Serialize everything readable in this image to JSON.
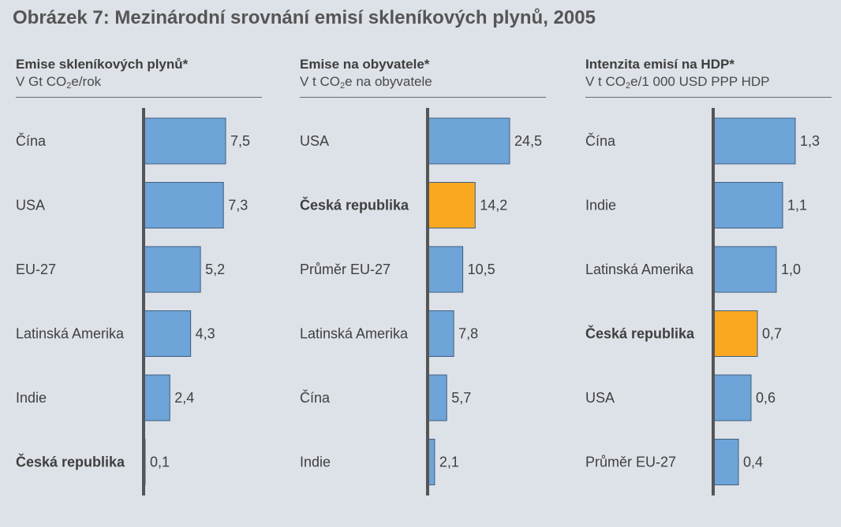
{
  "figure_title": "Obrázek 7: Mezinárodní srovnání emisí skleníkových plynů, 2005",
  "colors": {
    "bar": "#6ea4d8",
    "bar_stroke": "#3e5f80",
    "highlight": "#f9a81f",
    "axis": "#555555"
  },
  "chart_data": [
    {
      "type": "bar",
      "orientation": "horizontal",
      "title": "Emise skleníkových plynů*",
      "subtitle": {
        "before": "V Gt CO",
        "sub": "2",
        "after": "e/rok"
      },
      "categories": [
        "Čína",
        "USA",
        "EU-27",
        "Latinská Amerika",
        "Indie",
        "Česká republika"
      ],
      "values": [
        7.5,
        7.3,
        5.2,
        4.3,
        2.4,
        0.1
      ],
      "value_labels": [
        "7,5",
        "7,3",
        "5,2",
        "4,3",
        "2,4",
        "0,1"
      ],
      "highlight": [
        false,
        false,
        false,
        false,
        false,
        false
      ],
      "bold_labels": [
        false,
        false,
        false,
        false,
        false,
        true
      ],
      "xlim": [
        0,
        7.5
      ]
    },
    {
      "type": "bar",
      "orientation": "horizontal",
      "title": "Emise na obyvatele*",
      "subtitle": {
        "before": "V t CO",
        "sub": "2",
        "after": "e na obyvatele"
      },
      "categories": [
        "USA",
        "Česká republika",
        "Průměr EU-27",
        "Latinská Amerika",
        "Čína",
        "Indie"
      ],
      "values": [
        24.5,
        14.2,
        10.5,
        7.8,
        5.7,
        2.1
      ],
      "value_labels": [
        "24,5",
        "14,2",
        "10,5",
        "7,8",
        "5,7",
        "2,1"
      ],
      "highlight": [
        false,
        true,
        false,
        false,
        false,
        false
      ],
      "bold_labels": [
        false,
        true,
        false,
        false,
        false,
        false
      ],
      "xlim": [
        0,
        24.5
      ]
    },
    {
      "type": "bar",
      "orientation": "horizontal",
      "title": "Intenzita emisí na HDP*",
      "subtitle": {
        "before": "V t CO",
        "sub": "2",
        "after": "e/1 000 USD PPP HDP"
      },
      "categories": [
        "Čína",
        "Indie",
        "Latinská Amerika",
        "Česká republika",
        "USA",
        "Průměr EU-27"
      ],
      "values": [
        1.3,
        1.1,
        1.0,
        0.7,
        0.6,
        0.4
      ],
      "value_labels": [
        "1,3",
        "1,1",
        "1,0",
        "0,7",
        "0,6",
        "0,4"
      ],
      "highlight": [
        false,
        false,
        false,
        true,
        false,
        false
      ],
      "bold_labels": [
        false,
        false,
        false,
        true,
        false,
        false
      ],
      "xlim": [
        0,
        1.3
      ]
    }
  ]
}
